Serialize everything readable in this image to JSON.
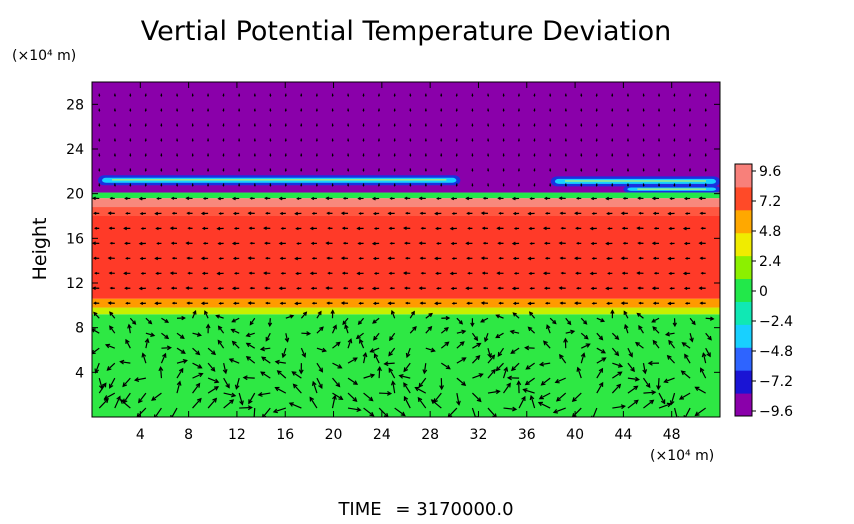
{
  "chart_data": {
    "type": "heatmap",
    "title": "Vertial Potential Temperature Deviation",
    "ylabel": "Height",
    "x_unit": "(×10⁴ m)",
    "y_unit": "(×10⁴ m)",
    "xlim": [
      0,
      52
    ],
    "ylim": [
      0,
      30
    ],
    "x_ticks": [
      "4",
      "8",
      "12",
      "16",
      "20",
      "24",
      "28",
      "32",
      "36",
      "40",
      "44",
      "48"
    ],
    "y_ticks": [
      "4",
      "8",
      "12",
      "16",
      "20",
      "24",
      "28"
    ],
    "time_label": "TIME",
    "time_value": "= 3170000.0",
    "colorbar": {
      "range": [
        -9.6,
        9.6
      ],
      "tick_labels": [
        "9.6",
        "7.2",
        "4.8",
        "2.4",
        "0",
        "−2.4",
        "−4.8",
        "−7.2",
        "−9.6"
      ],
      "colors": [
        "#8a00aa",
        "#1a14d4",
        "#2e64ff",
        "#18d0ff",
        "#10e8b4",
        "#22e84a",
        "#8cf000",
        "#f0ec00",
        "#ffa800",
        "#ff4a28",
        "#f8807a"
      ]
    },
    "field_bands": [
      {
        "y_from": 0,
        "y_to": 9.2,
        "value": 0.4,
        "color": "#2ee844"
      },
      {
        "y_from": 9.2,
        "y_to": 9.8,
        "value": 3.2,
        "color": "#c8f000"
      },
      {
        "y_from": 9.8,
        "y_to": 10.6,
        "value": 5.8,
        "color": "#ff9a00"
      },
      {
        "y_from": 10.6,
        "y_to": 18.8,
        "value": 7.6,
        "color": "#ff3a28"
      },
      {
        "y_from": 18.8,
        "y_to": 19.6,
        "value": 9.2,
        "color": "#f8887c"
      },
      {
        "y_from": 19.6,
        "y_to": 20.1,
        "value": 2.4,
        "color": "#22e84a"
      },
      {
        "y_from": 20.1,
        "y_to": 30,
        "value": -9.6,
        "color": "#8a00aa"
      }
    ],
    "wind_vectors": "quiver overlay"
  }
}
